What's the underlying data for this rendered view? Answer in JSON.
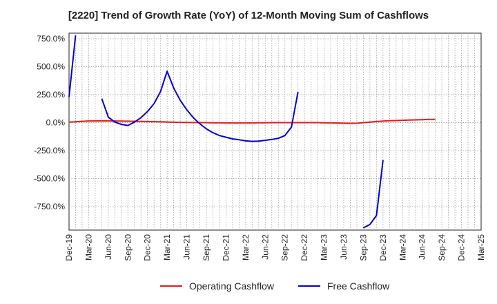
{
  "chart_data": {
    "type": "line",
    "title": "[2220]  Trend of Growth Rate (YoY) of 12-Month Moving Sum of Cashflows",
    "xlabel": "",
    "ylabel": "",
    "x_tick_labels": [
      "Dec-19",
      "Mar-20",
      "Jun-20",
      "Sep-20",
      "Dec-20",
      "Mar-21",
      "Jun-21",
      "Sep-21",
      "Dec-21",
      "Mar-22",
      "Jun-22",
      "Sep-22",
      "Dec-22",
      "Mar-23",
      "Jun-23",
      "Sep-23",
      "Dec-23",
      "Mar-24",
      "Jun-24",
      "Sep-24",
      "Dec-24",
      "Mar-25"
    ],
    "y_ticks": [
      750,
      500,
      250,
      0,
      -250,
      -500,
      -750
    ],
    "y_tick_labels": [
      "750.0%",
      "500.0%",
      "250.0%",
      "0.0%",
      "-250.0%",
      "-500.0%",
      "-750.0%"
    ],
    "ylim": [
      -960,
      800
    ],
    "xlim": [
      0,
      63
    ],
    "grid": true,
    "legend_position": "bottom-center",
    "series": [
      {
        "name": "Operating Cashflow",
        "color": "#e41a1c",
        "points": [
          [
            0,
            5
          ],
          [
            1,
            8
          ],
          [
            2,
            12
          ],
          [
            3,
            15
          ],
          [
            4,
            16
          ],
          [
            5,
            16
          ],
          [
            6,
            16
          ],
          [
            7,
            15
          ],
          [
            8,
            14
          ],
          [
            9,
            13
          ],
          [
            10,
            12
          ],
          [
            11,
            11
          ],
          [
            12,
            10
          ],
          [
            13,
            9
          ],
          [
            14,
            8
          ],
          [
            15,
            6
          ],
          [
            16,
            4
          ],
          [
            17,
            3
          ],
          [
            18,
            2
          ],
          [
            19,
            1
          ],
          [
            20,
            0
          ],
          [
            21,
            0
          ],
          [
            22,
            -1
          ],
          [
            23,
            -1
          ],
          [
            24,
            -2
          ],
          [
            25,
            -2
          ],
          [
            26,
            -2
          ],
          [
            27,
            -2
          ],
          [
            28,
            -2
          ],
          [
            29,
            -1
          ],
          [
            30,
            -1
          ],
          [
            31,
            0
          ],
          [
            32,
            0
          ],
          [
            33,
            0
          ],
          [
            34,
            0
          ],
          [
            35,
            0
          ],
          [
            36,
            0
          ],
          [
            37,
            0
          ],
          [
            38,
            0
          ],
          [
            39,
            -1
          ],
          [
            40,
            -2
          ],
          [
            41,
            -3
          ],
          [
            42,
            -4
          ],
          [
            43,
            -6
          ],
          [
            44,
            -5
          ],
          [
            45,
            0
          ],
          [
            46,
            5
          ],
          [
            47,
            10
          ],
          [
            48,
            14
          ],
          [
            49,
            17
          ],
          [
            50,
            19
          ],
          [
            51,
            21
          ],
          [
            52,
            23
          ],
          [
            53,
            25
          ],
          [
            54,
            27
          ],
          [
            55,
            29
          ],
          [
            56,
            30
          ]
        ]
      },
      {
        "name": "Free Cashflow",
        "color": "#0000cc",
        "segments": [
          [
            [
              0,
              230
            ],
            [
              1,
              780
            ]
          ],
          [
            [
              5,
              215
            ],
            [
              6,
              50
            ],
            [
              7,
              5
            ],
            [
              8,
              -15
            ],
            [
              9,
              -25
            ],
            [
              10,
              5
            ],
            [
              11,
              45
            ],
            [
              12,
              100
            ],
            [
              13,
              170
            ],
            [
              14,
              280
            ],
            [
              15,
              460
            ],
            [
              16,
              310
            ],
            [
              17,
              200
            ],
            [
              18,
              115
            ],
            [
              19,
              45
            ],
            [
              20,
              -10
            ],
            [
              21,
              -55
            ],
            [
              22,
              -90
            ],
            [
              23,
              -115
            ],
            [
              24,
              -130
            ],
            [
              25,
              -145
            ],
            [
              26,
              -153
            ],
            [
              27,
              -163
            ],
            [
              28,
              -167
            ],
            [
              29,
              -165
            ],
            [
              30,
              -158
            ],
            [
              31,
              -150
            ],
            [
              32,
              -140
            ],
            [
              33,
              -115
            ],
            [
              34,
              -40
            ],
            [
              35,
              275
            ]
          ],
          [
            [
              45,
              -940
            ],
            [
              46,
              -910
            ],
            [
              47,
              -830
            ],
            [
              48,
              -335
            ]
          ]
        ]
      }
    ]
  }
}
